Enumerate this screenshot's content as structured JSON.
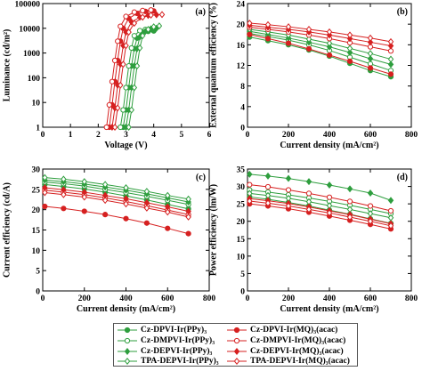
{
  "chart_data": [
    {
      "id": "a",
      "panel_label": "(a)",
      "type": "line",
      "xlabel": "Voltage (V)",
      "ylabel": "Luminance (cd/m²)",
      "xlim": [
        0,
        6
      ],
      "ylim": [
        1,
        100000
      ],
      "yscale": "log",
      "xticks": [
        0,
        1,
        2,
        3,
        4,
        5,
        6
      ],
      "yticks": [
        1,
        10,
        100,
        1000,
        10000,
        100000
      ],
      "ytick_labels": [
        "1",
        "10",
        "100",
        "1000",
        "10000",
        "100000"
      ],
      "series": [
        {
          "x": [
            2.9,
            3.0,
            3.1,
            3.2,
            3.3,
            3.4,
            3.6,
            3.8,
            4.0
          ],
          "y": [
            1,
            5,
            40,
            300,
            1500,
            4000,
            6500,
            7500,
            7800
          ]
        },
        {
          "x": [
            2.8,
            2.9,
            3.0,
            3.1,
            3.2,
            3.3,
            3.5,
            3.7,
            3.9
          ],
          "y": [
            1,
            5,
            40,
            300,
            1600,
            5000,
            8000,
            9000,
            9300
          ]
        },
        {
          "x": [
            3.0,
            3.1,
            3.2,
            3.3,
            3.4,
            3.5,
            3.7,
            3.9,
            4.1
          ],
          "y": [
            1,
            5,
            40,
            300,
            1500,
            4500,
            7500,
            9500,
            10000
          ]
        },
        {
          "x": [
            3.1,
            3.2,
            3.3,
            3.4,
            3.5,
            3.6,
            3.8,
            4.0,
            4.2
          ],
          "y": [
            1,
            5,
            40,
            300,
            1600,
            5000,
            9000,
            11500,
            12500
          ]
        },
        {
          "x": [
            2.4,
            2.5,
            2.6,
            2.7,
            2.8,
            2.9,
            3.1,
            3.4,
            3.7,
            4.0
          ],
          "y": [
            1,
            8,
            70,
            500,
            3000,
            10000,
            25000,
            40000,
            48000,
            50000
          ]
        },
        {
          "x": [
            2.3,
            2.4,
            2.5,
            2.6,
            2.7,
            2.8,
            3.0,
            3.3,
            3.6,
            3.9
          ],
          "y": [
            1,
            8,
            70,
            500,
            3000,
            12000,
            30000,
            45000,
            52000,
            55000
          ]
        },
        {
          "x": [
            2.5,
            2.6,
            2.7,
            2.8,
            2.9,
            3.0,
            3.2,
            3.5,
            3.8,
            4.1
          ],
          "y": [
            1,
            6,
            50,
            350,
            2000,
            7000,
            18000,
            28000,
            33000,
            35000
          ]
        },
        {
          "x": [
            2.6,
            2.7,
            2.8,
            2.9,
            3.0,
            3.1,
            3.3,
            3.6,
            3.9,
            4.3
          ],
          "y": [
            1,
            6,
            50,
            350,
            2000,
            7000,
            16000,
            28000,
            34000,
            36000
          ]
        }
      ]
    },
    {
      "id": "b",
      "panel_label": "(b)",
      "type": "line",
      "xlabel": "Current density (mA/cm²)",
      "ylabel": "External quantum efficiency (%)",
      "xlim": [
        0,
        800
      ],
      "ylim": [
        0,
        24
      ],
      "xticks": [
        0,
        200,
        400,
        600,
        800
      ],
      "yticks": [
        0,
        4,
        8,
        12,
        16,
        20,
        24
      ],
      "series": [
        {
          "x": [
            10,
            100,
            200,
            300,
            400,
            500,
            600,
            700
          ],
          "y": [
            17.5,
            16.8,
            16.0,
            15.0,
            13.8,
            12.4,
            11.0,
            9.8
          ]
        },
        {
          "x": [
            10,
            100,
            200,
            300,
            400,
            500,
            600,
            700
          ],
          "y": [
            18.2,
            17.6,
            16.9,
            16.0,
            14.9,
            13.6,
            12.3,
            11.0
          ]
        },
        {
          "x": [
            10,
            100,
            200,
            300,
            400,
            500,
            600,
            700
          ],
          "y": [
            18.6,
            18.0,
            17.3,
            16.5,
            15.6,
            14.5,
            13.3,
            12.2
          ]
        },
        {
          "x": [
            10,
            100,
            200,
            300,
            400,
            500,
            600,
            700
          ],
          "y": [
            19.0,
            18.5,
            17.9,
            17.1,
            16.3,
            15.3,
            14.3,
            13.2
          ]
        },
        {
          "x": [
            10,
            100,
            200,
            300,
            400,
            500,
            600,
            700
          ],
          "y": [
            18.0,
            17.2,
            16.3,
            15.2,
            14.0,
            12.8,
            11.5,
            10.3
          ]
        },
        {
          "x": [
            10,
            100,
            200,
            300,
            400,
            500,
            600,
            700
          ],
          "y": [
            19.4,
            19.0,
            18.5,
            17.9,
            17.2,
            16.4,
            15.6,
            14.8
          ]
        },
        {
          "x": [
            10,
            100,
            200,
            300,
            400,
            500,
            600,
            700
          ],
          "y": [
            19.8,
            19.4,
            19.0,
            18.5,
            17.9,
            17.2,
            16.5,
            15.8
          ]
        },
        {
          "x": [
            10,
            100,
            200,
            300,
            400,
            500,
            600,
            700
          ],
          "y": [
            20.2,
            19.9,
            19.5,
            19.0,
            18.5,
            17.9,
            17.3,
            16.6
          ]
        }
      ]
    },
    {
      "id": "c",
      "panel_label": "(c)",
      "type": "line",
      "xlabel": "Current density (mA/cm²)",
      "ylabel": "Current efficiency (cd/A)",
      "xlim": [
        0,
        800
      ],
      "ylim": [
        0,
        30
      ],
      "xticks": [
        0,
        200,
        400,
        600,
        800
      ],
      "yticks": [
        0,
        5,
        10,
        15,
        20,
        25,
        30
      ],
      "series": [
        {
          "x": [
            10,
            100,
            200,
            300,
            400,
            500,
            600,
            700
          ],
          "y": [
            26.2,
            25.7,
            25.1,
            24.3,
            23.4,
            22.4,
            21.3,
            20.2
          ]
        },
        {
          "x": [
            10,
            100,
            200,
            300,
            400,
            500,
            600,
            700
          ],
          "y": [
            26.8,
            26.4,
            25.8,
            25.0,
            24.2,
            23.3,
            22.3,
            21.3
          ]
        },
        {
          "x": [
            10,
            100,
            200,
            300,
            400,
            500,
            600,
            700
          ],
          "y": [
            27.3,
            26.9,
            26.3,
            25.6,
            24.8,
            23.9,
            22.9,
            21.9
          ]
        },
        {
          "x": [
            10,
            100,
            200,
            300,
            400,
            500,
            600,
            700
          ],
          "y": [
            27.9,
            27.5,
            26.9,
            26.2,
            25.4,
            24.5,
            23.5,
            22.6
          ]
        },
        {
          "x": [
            10,
            100,
            200,
            300,
            400,
            500,
            600,
            700
          ],
          "y": [
            20.8,
            20.3,
            19.6,
            18.8,
            17.8,
            16.7,
            15.4,
            14.1
          ]
        },
        {
          "x": [
            10,
            100,
            200,
            300,
            400,
            500,
            600,
            700
          ],
          "y": [
            24.8,
            24.3,
            23.7,
            22.9,
            22.0,
            21.0,
            19.9,
            18.8
          ]
        },
        {
          "x": [
            10,
            100,
            200,
            300,
            400,
            500,
            600,
            700
          ],
          "y": [
            25.4,
            24.9,
            24.3,
            23.5,
            22.7,
            21.7,
            20.7,
            19.6
          ]
        },
        {
          "x": [
            10,
            100,
            200,
            300,
            400,
            500,
            600,
            700
          ],
          "y": [
            24.2,
            23.7,
            23.1,
            22.3,
            21.4,
            20.4,
            19.4,
            18.2
          ]
        }
      ]
    },
    {
      "id": "d",
      "panel_label": "(d)",
      "type": "line",
      "xlabel": "Current density (mA/cm²)",
      "ylabel": "Power efficiency (lm/W)",
      "xlim": [
        0,
        800
      ],
      "ylim": [
        0,
        35
      ],
      "xticks": [
        0,
        200,
        400,
        600,
        800
      ],
      "yticks": [
        0,
        5,
        10,
        15,
        20,
        25,
        30,
        35
      ],
      "series": [
        {
          "x": [
            10,
            100,
            200,
            300,
            400,
            500,
            600,
            700
          ],
          "y": [
            27.0,
            26.3,
            25.4,
            24.4,
            23.2,
            22.0,
            20.7,
            19.4
          ]
        },
        {
          "x": [
            10,
            100,
            200,
            300,
            400,
            500,
            600,
            700
          ],
          "y": [
            29.0,
            28.4,
            27.6,
            26.7,
            25.7,
            24.6,
            23.4,
            22.2
          ]
        },
        {
          "x": [
            10,
            100,
            200,
            300,
            400,
            500,
            600,
            700
          ],
          "y": [
            33.5,
            33.0,
            32.3,
            31.4,
            30.4,
            29.3,
            28.1,
            26.0
          ]
        },
        {
          "x": [
            10,
            100,
            200,
            300,
            400,
            500,
            600,
            700
          ],
          "y": [
            28.0,
            27.4,
            26.6,
            25.6,
            24.5,
            23.4,
            22.2,
            21.0
          ]
        },
        {
          "x": [
            10,
            100,
            200,
            300,
            400,
            500,
            600,
            700
          ],
          "y": [
            25.0,
            24.4,
            23.6,
            22.6,
            21.5,
            20.3,
            19.1,
            17.8
          ]
        },
        {
          "x": [
            10,
            100,
            200,
            300,
            400,
            500,
            600,
            700
          ],
          "y": [
            30.5,
            29.9,
            29.0,
            28.0,
            26.9,
            25.7,
            24.4,
            23.0
          ]
        },
        {
          "x": [
            10,
            100,
            200,
            300,
            400,
            500,
            600,
            700
          ],
          "y": [
            26.5,
            25.9,
            25.1,
            24.1,
            23.0,
            21.9,
            20.6,
            19.3
          ]
        },
        {
          "x": [
            10,
            100,
            200,
            300,
            400,
            500,
            600,
            700
          ],
          "y": [
            25.8,
            25.2,
            24.4,
            23.4,
            22.4,
            21.2,
            20.0,
            18.7
          ]
        }
      ]
    }
  ],
  "legend": {
    "entries": [
      {
        "label": "Cz-DPVI-Ir(PPy)₃",
        "color": "#2e9e3e",
        "marker": "filled-circle"
      },
      {
        "label": "Cz-DMPVI-Ir(PPy)₃",
        "color": "#2e9e3e",
        "marker": "open-circle"
      },
      {
        "label": "Cz-DEPVI-Ir(PPy)₃",
        "color": "#2e9e3e",
        "marker": "filled-diamond"
      },
      {
        "label": "TPA-DEPVI-Ir(PPy)₃",
        "color": "#2e9e3e",
        "marker": "open-diamond"
      },
      {
        "label": "Cz-DPVI-Ir(MQ)₃(acac)",
        "color": "#d62020",
        "marker": "filled-circle"
      },
      {
        "label": "Cz-DMPVI-Ir(MQ)₃(acac)",
        "color": "#d62020",
        "marker": "open-circle"
      },
      {
        "label": "Cz-DEPVI-Ir(MQ)₃(acac)",
        "color": "#d62020",
        "marker": "filled-diamond"
      },
      {
        "label": "TPA-DEPVI-Ir(MQ)₃(acac)",
        "color": "#d62020",
        "marker": "open-diamond"
      }
    ]
  },
  "colors": {
    "green": "#2e9e3e",
    "red": "#d62020",
    "axis": "#000000"
  }
}
